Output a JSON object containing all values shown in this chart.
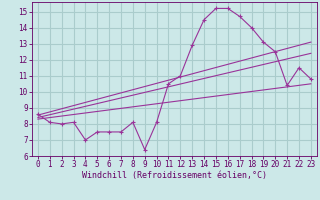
{
  "xlabel": "Windchill (Refroidissement éolien,°C)",
  "bg_color": "#cce8e8",
  "grid_color": "#aacccc",
  "line_color": "#993399",
  "xlim": [
    -0.5,
    23.5
  ],
  "ylim": [
    6,
    15.6
  ],
  "xticks": [
    0,
    1,
    2,
    3,
    4,
    5,
    6,
    7,
    8,
    9,
    10,
    11,
    12,
    13,
    14,
    15,
    16,
    17,
    18,
    19,
    20,
    21,
    22,
    23
  ],
  "yticks": [
    6,
    7,
    8,
    9,
    10,
    11,
    12,
    13,
    14,
    15
  ],
  "series1_x": [
    0,
    1,
    2,
    3,
    4,
    5,
    6,
    7,
    8,
    9,
    10,
    11,
    12,
    13,
    14,
    15,
    16,
    17,
    18,
    19,
    20,
    21,
    22,
    23
  ],
  "series1_y": [
    8.6,
    8.1,
    8.0,
    8.1,
    7.0,
    7.5,
    7.5,
    7.5,
    8.1,
    6.4,
    8.1,
    10.5,
    11.0,
    12.9,
    14.5,
    15.2,
    15.2,
    14.7,
    14.0,
    13.1,
    12.5,
    10.4,
    11.5,
    10.8
  ],
  "series2_x": [
    0,
    23
  ],
  "series2_y": [
    8.55,
    13.1
  ],
  "series3_x": [
    0,
    23
  ],
  "series3_y": [
    8.4,
    12.4
  ],
  "series4_x": [
    0,
    23
  ],
  "series4_y": [
    8.3,
    10.5
  ]
}
